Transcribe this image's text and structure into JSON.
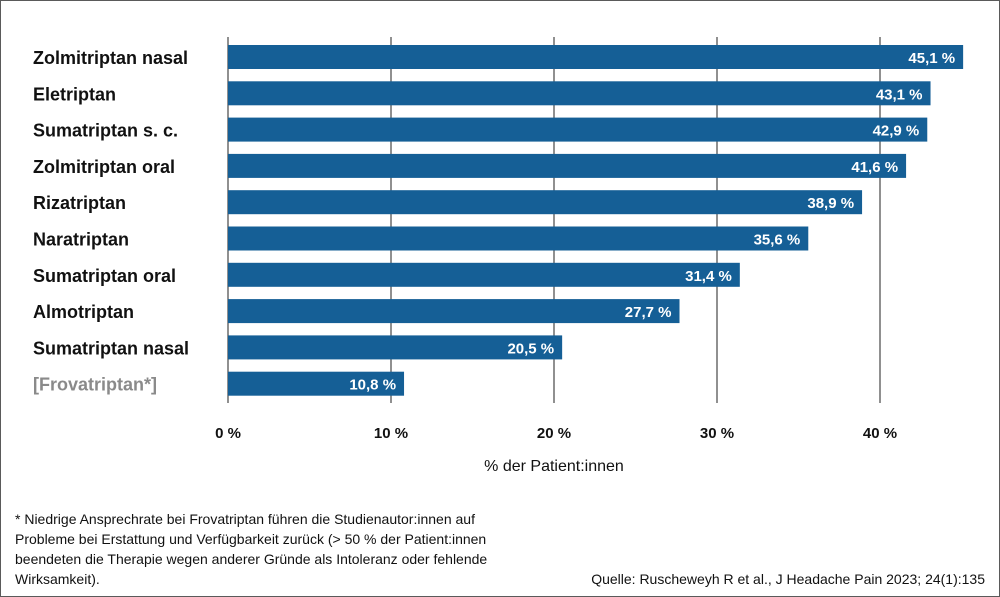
{
  "chart_data": {
    "type": "bar",
    "orientation": "horizontal",
    "categories": [
      "Zolmitriptan nasal",
      "Eletriptan",
      "Sumatriptan s. c.",
      "Zolmitriptan oral",
      "Rizatriptan",
      "Naratriptan",
      "Sumatriptan oral",
      "Almotriptan",
      "Sumatriptan nasal",
      "[Frovatriptan*]"
    ],
    "values": [
      45.1,
      43.1,
      42.9,
      41.6,
      38.9,
      35.6,
      31.4,
      27.7,
      20.5,
      10.8
    ],
    "value_labels": [
      "45,1 %",
      "43,1 %",
      "42,9 %",
      "41,6 %",
      "38,9 %",
      "35,6 %",
      "31,4 %",
      "27,7 %",
      "20,5 %",
      "10,8 %"
    ],
    "highlighted_category_index": 9,
    "xlabel": "% der Patient:innen",
    "xlim": [
      0,
      45
    ],
    "xticks": [
      0,
      10,
      20,
      30,
      40
    ],
    "xtick_labels": [
      "0 %",
      "10 %",
      "20 %",
      "30 %",
      "40 %"
    ],
    "grid": "vertical",
    "legend": "none"
  },
  "colors": {
    "bar": "#155f96",
    "bar_label": "#ffffff",
    "category_label": "#111111",
    "muted_category_label": "#8a8a8a",
    "grid": "#222222",
    "frame": "#5a5a5a"
  },
  "footnote": "* Niedrige Ansprechrate bei Frovatriptan führen die Studienautor:innen auf Probleme bei Erstattung und Verfügbarkeit zurück (> 50 % der Patient:innen beendeten die Therapie wegen anderer Gründe als Intoleranz oder fehlende Wirksamkeit).",
  "source": "Quelle: Ruscheweyh R et al., J Headache Pain 2023; 24(1):135"
}
